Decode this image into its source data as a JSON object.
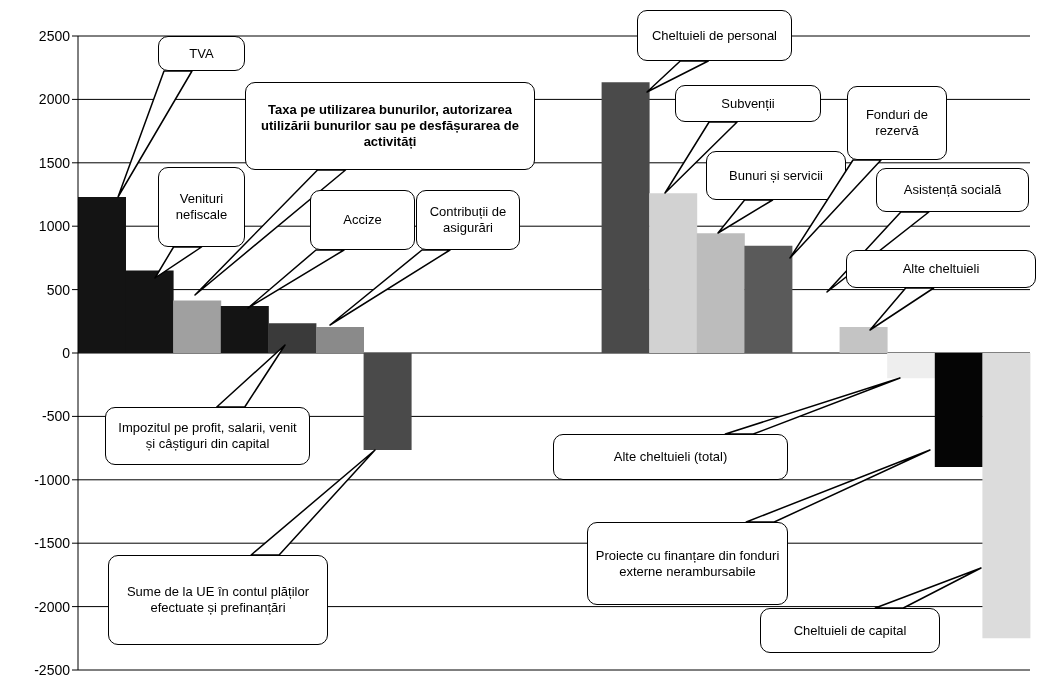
{
  "chart_data": {
    "type": "bar",
    "categories": [
      null,
      null,
      null,
      null,
      null,
      null,
      null,
      null,
      null,
      null,
      null,
      null,
      null,
      null,
      null,
      null,
      null,
      null,
      null,
      null
    ],
    "values": [
      1230,
      650,
      415,
      370,
      235,
      205,
      -765,
      null,
      null,
      null,
      null,
      2135,
      1260,
      945,
      845,
      null,
      205,
      -200,
      -900,
      -2250
    ],
    "colors": [
      "#141414",
      "#141414",
      "#a0a0a0",
      "#141414",
      "#3a3a3a",
      "#8a8a8a",
      "#4a4a4a",
      "#ffffff",
      "#ffffff",
      "#ffffff",
      "#ffffff",
      "#4a4a4a",
      "#d2d2d2",
      "#bcbcbc",
      "#5a5a5a",
      "#ffffff",
      "#c4c4c4",
      "#eeeeee",
      "#050505",
      "#dcdcdc"
    ],
    "ylim": [
      -2500,
      2500
    ],
    "yticks": [
      -2500,
      -2000,
      -1500,
      -1000,
      -500,
      0,
      500,
      1000,
      1500,
      2000,
      2500
    ],
    "grid": "y",
    "legend": false,
    "annotations": [
      "TVA",
      "Venituri nefiscale",
      "Taxa pe utilizarea bunurilor, autorizarea utilizării bunurilor sau pe desfășurarea de activități",
      "Accize",
      "Contribuții de asigurări",
      "Impozitul pe profit, salarii, venit și câștiguri din capital",
      "Sume de la UE în contul plăților efectuate și prefinanțări",
      "Cheltuieli de personal",
      "Subvenții",
      "Bunuri și servicii",
      "Fonduri de rezervă",
      "Asistență socială",
      "Alte cheltuieli",
      "Alte cheltuieli (total)",
      "Proiecte cu finanțare din fonduri externe nerambursabile",
      "Cheltuieli de capital"
    ]
  }
}
